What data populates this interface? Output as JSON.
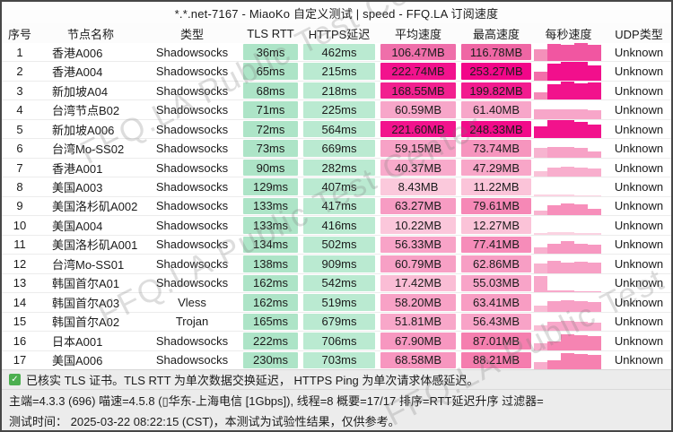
{
  "title": "*.*.net-7167 - MiaoKo 自定义测试 | speed - FFQ.LA 订阅速度",
  "watermark": "FFQ.LA Public Test Center",
  "colors": {
    "tls_cell": "#ADE4C7",
    "https_cell": "#BAEAD1",
    "footer_bg": "#ECECEC",
    "check_green": "#4CAF50"
  },
  "table": {
    "headers": [
      "序号",
      "节点名称",
      "类型",
      "TLS RTT",
      "HTTPS延迟",
      "平均速度",
      "最高速度",
      "每秒速度",
      "UDP类型"
    ],
    "rows": [
      {
        "no": "1",
        "name": "香港A006",
        "type": "Shadowsocks",
        "tls": "36ms",
        "https": "462ms",
        "avg": "106.47MB",
        "max": "116.78MB",
        "udp": "Unknown",
        "avg_color": "#EF6FAA",
        "max_color": "#EF66A4",
        "bar_color": "#F156A1",
        "bar_first_color": "#F490BA",
        "bars": [
          0.65,
          0.95,
          0.9,
          1,
          0.9
        ]
      },
      {
        "no": "2",
        "name": "香港A004",
        "type": "Shadowsocks",
        "tls": "65ms",
        "https": "215ms",
        "avg": "222.74MB",
        "max": "253.27MB",
        "udp": "Unknown",
        "avg_color": "#F2128D",
        "max_color": "#F20689",
        "bar_color": "#F20F8C",
        "bar_first_color": "#F36EA9",
        "bars": [
          0.5,
          0.95,
          1,
          1,
          0.85
        ]
      },
      {
        "no": "3",
        "name": "新加坡A04",
        "type": "Shadowsocks",
        "tls": "68ms",
        "https": "218ms",
        "avg": "168.55MB",
        "max": "199.82MB",
        "udp": "Unknown",
        "avg_color": "#F2218F",
        "max_color": "#F21C8F",
        "bar_color": "#F2128C",
        "bar_first_color": "#F589B7",
        "bars": [
          0.4,
          0.85,
          1,
          0.9,
          0.95
        ]
      },
      {
        "no": "4",
        "name": "台湾节点B02",
        "type": "Shadowsocks",
        "tls": "71ms",
        "https": "225ms",
        "avg": "60.59MB",
        "max": "61.40MB",
        "udp": "Unknown",
        "avg_color": "#F7A6C9",
        "max_color": "#F7A6C9",
        "bar_color": "#F7A6C9",
        "bar_first_color": "#F7A6C9",
        "bars": [
          0.55,
          0.55,
          0.55,
          0.55,
          0.5
        ]
      },
      {
        "no": "5",
        "name": "新加坡A006",
        "type": "Shadowsocks",
        "tls": "72ms",
        "https": "564ms",
        "avg": "221.60MB",
        "max": "248.33MB",
        "udp": "Unknown",
        "avg_color": "#F2138D",
        "max_color": "#F20B8A",
        "bar_color": "#F2128C",
        "bar_first_color": "#F2128C",
        "bars": [
          0.65,
          1,
          1,
          0.9,
          0.75
        ]
      },
      {
        "no": "6",
        "name": "台湾Mo-SS02",
        "type": "Shadowsocks",
        "tls": "73ms",
        "https": "669ms",
        "avg": "59.15MB",
        "max": "73.74MB",
        "udp": "Unknown",
        "avg_color": "#F7A2C6",
        "max_color": "#F695BE",
        "bar_color": "#F7A2C6",
        "bar_first_color": "#F7B4D0",
        "bars": [
          0.55,
          0.6,
          0.6,
          0.55,
          0.35
        ]
      },
      {
        "no": "7",
        "name": "香港A001",
        "type": "Shadowsocks",
        "tls": "90ms",
        "https": "282ms",
        "avg": "40.37MB",
        "max": "47.29MB",
        "udp": "Unknown",
        "avg_color": "#F8AACB",
        "max_color": "#F8A6C8",
        "bar_color": "#F8AECD",
        "bar_first_color": "#F9C2D8",
        "bars": [
          0.3,
          0.5,
          0.55,
          0.5,
          0.45
        ]
      },
      {
        "no": "8",
        "name": "美国A003",
        "type": "Shadowsocks",
        "tls": "129ms",
        "https": "407ms",
        "avg": "8.43MB",
        "max": "11.22MB",
        "udp": "Unknown",
        "avg_color": "#FBC9DC",
        "max_color": "#FBC4D9",
        "bar_color": "#FBD3E2",
        "bar_first_color": "#FBD3E2",
        "bars": [
          0.1,
          0.08,
          0.08,
          0.06,
          0.05
        ]
      },
      {
        "no": "9",
        "name": "美国洛杉矶A002",
        "type": "Shadowsocks",
        "tls": "133ms",
        "https": "417ms",
        "avg": "63.27MB",
        "max": "79.61MB",
        "udp": "Unknown",
        "avg_color": "#F79CC3",
        "max_color": "#F688B6",
        "bar_color": "#F78FBB",
        "bar_first_color": "#F8B4D0",
        "bars": [
          0.25,
          0.55,
          0.65,
          0.6,
          0.35
        ]
      },
      {
        "no": "10",
        "name": "美国A004",
        "type": "Shadowsocks",
        "tls": "133ms",
        "https": "416ms",
        "avg": "10.22MB",
        "max": "12.27MB",
        "udp": "Unknown",
        "avg_color": "#FBC7DB",
        "max_color": "#FBC3D8",
        "bar_color": "#FBD3E2",
        "bar_first_color": "#FBD3E2",
        "bars": [
          0.08,
          0.12,
          0.12,
          0.1,
          0.08
        ]
      },
      {
        "no": "11",
        "name": "美国洛杉矶A001",
        "type": "Shadowsocks",
        "tls": "134ms",
        "https": "502ms",
        "avg": "56.33MB",
        "max": "77.41MB",
        "udp": "Unknown",
        "avg_color": "#F8A3C7",
        "max_color": "#F68CB9",
        "bar_color": "#F798C1",
        "bar_first_color": "#F8B0CE",
        "bars": [
          0.35,
          0.55,
          0.7,
          0.55,
          0.5
        ]
      },
      {
        "no": "12",
        "name": "台湾Mo-SS01",
        "type": "Shadowsocks",
        "tls": "138ms",
        "https": "909ms",
        "avg": "60.79MB",
        "max": "62.86MB",
        "udp": "Unknown",
        "avg_color": "#F7A0C5",
        "max_color": "#F79EC4",
        "bar_color": "#F7A0C5",
        "bar_first_color": "#F8B2CF",
        "bars": [
          0.5,
          0.65,
          0.55,
          0.6,
          0.55
        ]
      },
      {
        "no": "13",
        "name": "韩国首尔A01",
        "type": "Shadowsocks",
        "tls": "162ms",
        "https": "542ms",
        "avg": "17.42MB",
        "max": "55.03MB",
        "udp": "Unknown",
        "avg_color": "#FABDD5",
        "max_color": "#F8A4C8",
        "bar_color": "#F8A8CA",
        "bar_first_color": "#F8A8CA",
        "bars": [
          0.9,
          0.12,
          0.08,
          0.06,
          0.05
        ]
      },
      {
        "no": "14",
        "name": "韩国首尔A03",
        "type": "Vless",
        "tls": "162ms",
        "https": "519ms",
        "avg": "58.20MB",
        "max": "63.41MB",
        "udp": "Unknown",
        "avg_color": "#F8A2C6",
        "max_color": "#F89DC3",
        "bar_color": "#F7A0C5",
        "bar_first_color": "#F9BBD4",
        "bars": [
          0.3,
          0.55,
          0.6,
          0.55,
          0.5
        ]
      },
      {
        "no": "15",
        "name": "韩国首尔A02",
        "type": "Trojan",
        "tls": "165ms",
        "https": "679ms",
        "avg": "51.81MB",
        "max": "56.43MB",
        "udp": "Unknown",
        "avg_color": "#F8A7C9",
        "max_color": "#F8A3C7",
        "bar_color": "#F8A8CA",
        "bar_first_color": "#F9BDD5",
        "bars": [
          0.3,
          0.5,
          0.55,
          0.5,
          0.45
        ]
      },
      {
        "no": "16",
        "name": "日本A001",
        "type": "Shadowsocks",
        "tls": "222ms",
        "https": "706ms",
        "avg": "67.90MB",
        "max": "87.01MB",
        "udp": "Unknown",
        "avg_color": "#F797C0",
        "max_color": "#F57FAF",
        "bar_color": "#F684B2",
        "bar_first_color": "#F8AFCD",
        "bars": [
          0.35,
          0.45,
          0.85,
          0.8,
          0.75
        ]
      },
      {
        "no": "17",
        "name": "美国A006",
        "type": "Shadowsocks",
        "tls": "230ms",
        "https": "703ms",
        "avg": "68.58MB",
        "max": "88.21MB",
        "udp": "Unknown",
        "avg_color": "#F796BF",
        "max_color": "#F57DAE",
        "bar_color": "#F681B0",
        "bar_first_color": "#F8ADCC",
        "bars": [
          0.4,
          0.5,
          0.9,
          0.85,
          0.8
        ]
      }
    ]
  },
  "footer": {
    "check_glyph": "✓",
    "line1": "已核实 TLS 证书。TLS RTT 为单次数据交换延迟， HTTPS Ping 为单次请求体感延迟。",
    "line2": "主端=4.3.3 (696) 喵速=4.5.8 (▯华东-上海电信 [1Gbps]), 线程=8 概要=17/17 排序=RTT延迟升序 过滤器=",
    "line3": "测试时间： 2025-03-22 08:22:15 (CST)，本测试为试验性结果，仅供参考。"
  }
}
